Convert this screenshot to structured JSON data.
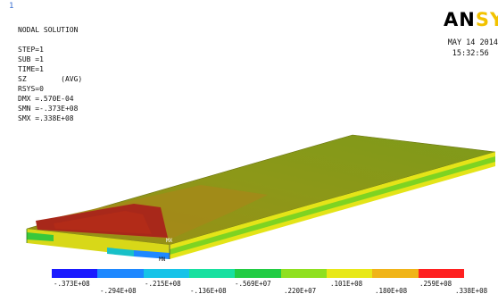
{
  "window_number": "1",
  "info_lines": [
    "NODAL SOLUTION",
    "",
    "STEP=1",
    "SUB =1",
    "TIME=1",
    "SZ        (AVG)",
    "RSYS=0",
    "DMX =.570E-04",
    "SMN =-.373E+08",
    "SMX =.338E+08"
  ],
  "logo": {
    "black": "AN",
    "yellow": "SY"
  },
  "date": "MAY 14 2014",
  "time": "15:32:56",
  "node_labels": {
    "min": "MN",
    "max": "MX"
  },
  "legend": {
    "colors": [
      "#1a1aff",
      "#1e88ff",
      "#17c3e8",
      "#18e0a0",
      "#22cc44",
      "#8fe020",
      "#e8e818",
      "#f0b418",
      "#ff2020"
    ],
    "labels_top": [
      "-.373E+08",
      "-.215E+08",
      "-.569E+07",
      ".101E+08",
      ".259E+08"
    ],
    "labels_bottom": [
      "-.294E+08",
      "-.136E+08",
      ".220E+07",
      ".180E+08",
      ".338E+08"
    ]
  },
  "colors": {
    "plate_top": "#8a9a18",
    "plate_band": "#a88c18",
    "plate_red": "#a82a14",
    "edge_yellow": "#e8e818",
    "edge_green": "#22cc44"
  }
}
